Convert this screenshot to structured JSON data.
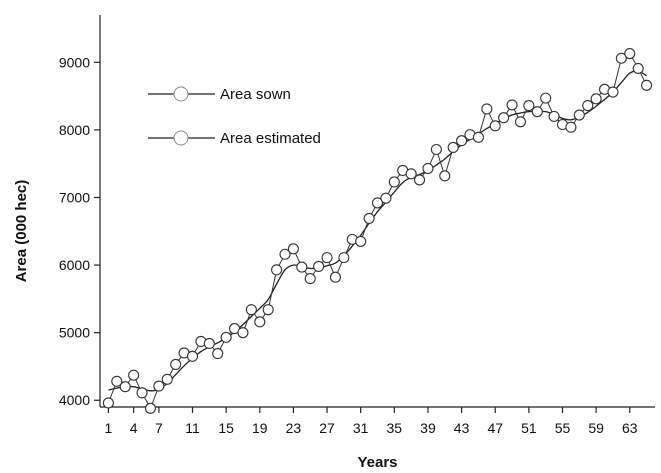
{
  "chart_data": {
    "type": "line",
    "xlabel": "Years",
    "ylabel": "Area (000 hec)",
    "xlim": [
      0,
      66
    ],
    "ylim": [
      3900,
      9700
    ],
    "xticks": [
      1,
      4,
      7,
      11,
      15,
      19,
      23,
      27,
      31,
      35,
      39,
      43,
      47,
      51,
      55,
      59,
      63
    ],
    "yticks": [
      4000,
      5000,
      6000,
      7000,
      8000,
      9000
    ],
    "grid": false,
    "legend_position": "top-left",
    "x": [
      1,
      2,
      3,
      4,
      5,
      6,
      7,
      8,
      9,
      10,
      11,
      12,
      13,
      14,
      15,
      16,
      17,
      18,
      19,
      20,
      21,
      22,
      23,
      24,
      25,
      26,
      27,
      28,
      29,
      30,
      31,
      32,
      33,
      34,
      35,
      36,
      37,
      38,
      39,
      40,
      41,
      42,
      43,
      44,
      45,
      46,
      47,
      48,
      49,
      50,
      51,
      52,
      53,
      54,
      55,
      56,
      57,
      58,
      59,
      60,
      61,
      62,
      63,
      64,
      65
    ],
    "series": [
      {
        "name": "Area sown",
        "style": "circles-with-line",
        "values": [
          3960,
          4280,
          4200,
          4370,
          4110,
          3880,
          4210,
          4310,
          4530,
          4700,
          4650,
          4870,
          4840,
          4690,
          4930,
          5060,
          5000,
          5340,
          5160,
          5340,
          5930,
          6160,
          6240,
          5970,
          5800,
          5980,
          6110,
          5820,
          6110,
          6380,
          6350,
          6690,
          6920,
          6990,
          7230,
          7400,
          7350,
          7260,
          7430,
          7710,
          7320,
          7740,
          7840,
          7930,
          7890,
          8310,
          8060,
          8180,
          8370,
          8120,
          8360,
          8270,
          8470,
          8200,
          8080,
          8040,
          8220,
          8360,
          8460,
          8600,
          8560,
          9060,
          9130,
          8910,
          8660
        ]
      },
      {
        "name": "Area estimated",
        "style": "smooth-line",
        "values": [
          4150,
          4180,
          4200,
          4200,
          4170,
          4140,
          4160,
          4250,
          4380,
          4510,
          4620,
          4720,
          4790,
          4850,
          4920,
          5010,
          5120,
          5240,
          5360,
          5490,
          5720,
          5930,
          6000,
          5980,
          5950,
          5960,
          5990,
          6030,
          6140,
          6280,
          6440,
          6620,
          6790,
          6930,
          7080,
          7220,
          7300,
          7340,
          7400,
          7480,
          7570,
          7680,
          7780,
          7860,
          7940,
          8020,
          8090,
          8160,
          8220,
          8250,
          8270,
          8270,
          8270,
          8230,
          8170,
          8150,
          8190,
          8260,
          8350,
          8450,
          8560,
          8700,
          8840,
          8870,
          8800
        ]
      }
    ]
  }
}
